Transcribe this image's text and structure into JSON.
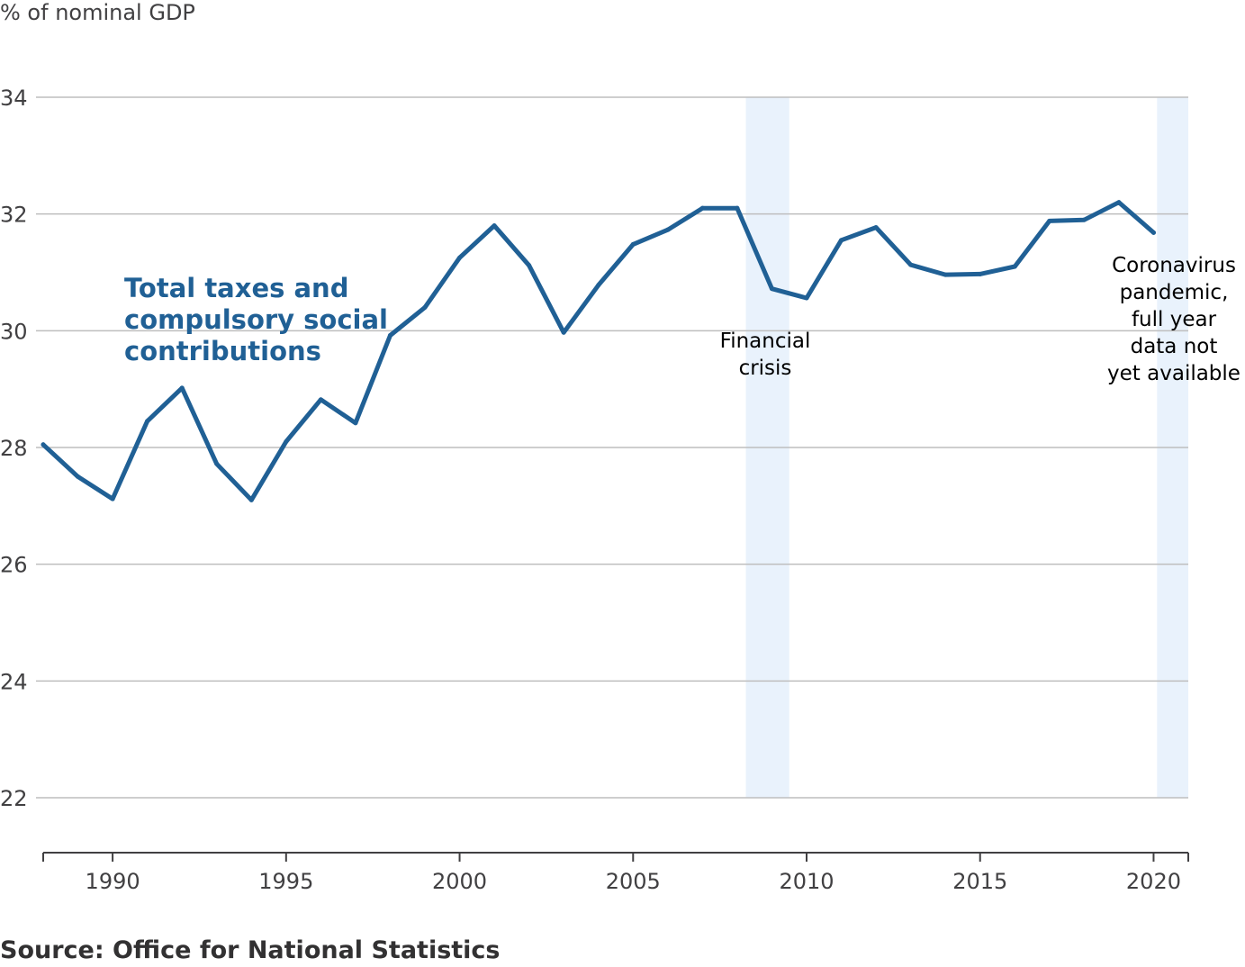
{
  "chart_data": {
    "type": "line",
    "unit_label": "% of nominal GDP",
    "source": "Source: Office for National Statistics",
    "xlim": [
      1988,
      2021
    ],
    "ylim": [
      21,
      34
    ],
    "yticks": [
      22,
      24,
      26,
      28,
      30,
      32,
      34
    ],
    "xticks": [
      1990,
      1995,
      2000,
      2005,
      2010,
      2015,
      2020
    ],
    "series": [
      {
        "name": "Total taxes and compulsory social contributions",
        "label_lines": [
          "Total taxes and",
          "compulsory social",
          "contributions"
        ],
        "color": "#206095",
        "x": [
          1988,
          1989,
          1990,
          1991,
          1992,
          1993,
          1994,
          1995,
          1996,
          1997,
          1998,
          1999,
          2000,
          2001,
          2002,
          2003,
          2004,
          2005,
          2006,
          2007,
          2008,
          2009,
          2010,
          2011,
          2012,
          2013,
          2014,
          2015,
          2016,
          2017,
          2018,
          2019,
          2020
        ],
        "values": [
          28.05,
          27.5,
          27.12,
          28.45,
          29.02,
          27.72,
          27.1,
          28.1,
          28.82,
          28.42,
          29.92,
          30.4,
          31.25,
          31.8,
          31.12,
          29.97,
          30.78,
          31.48,
          31.73,
          32.1,
          32.1,
          30.72,
          30.56,
          31.55,
          31.77,
          31.13,
          30.96,
          30.97,
          31.1,
          31.88,
          31.9,
          32.2,
          31.68
        ]
      }
    ],
    "shaded_periods": [
      {
        "name": "Financial crisis",
        "start": 2008.25,
        "end": 2009.5,
        "label_lines": [
          "Financial",
          "crisis"
        ],
        "color": "#e9f2fc"
      },
      {
        "name": "Coronavirus pandemic",
        "start": 2020.1,
        "end": 2021,
        "label_lines": [
          "Coronavirus",
          "pandemic,",
          "full year",
          "data not",
          "yet available"
        ],
        "color": "#e9f2fc"
      }
    ],
    "grid": true
  }
}
